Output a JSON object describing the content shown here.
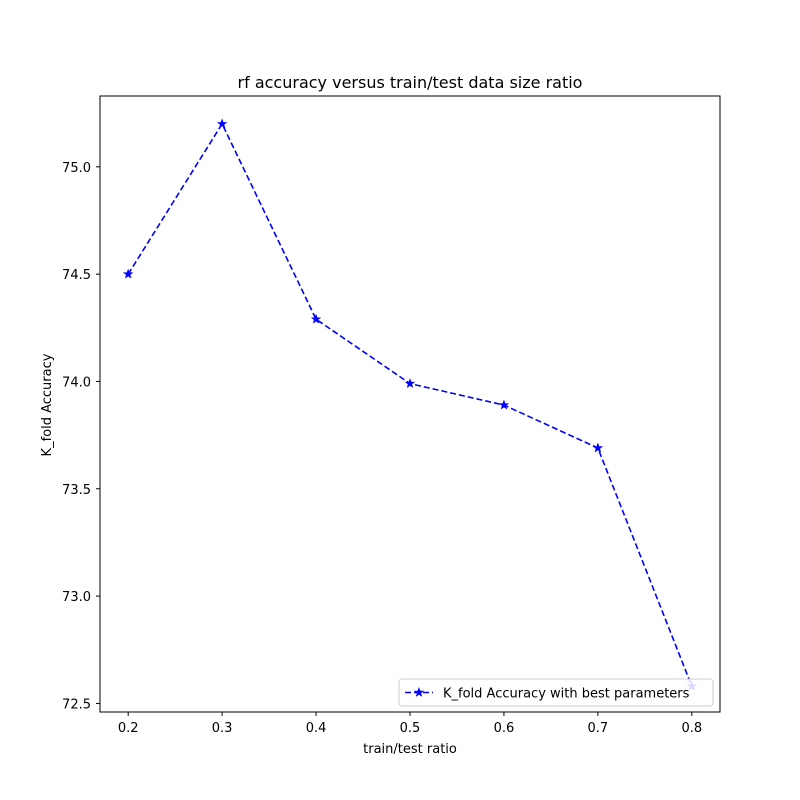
{
  "chart_data": {
    "type": "line",
    "title": "rf accuracy versus train/test data size ratio",
    "xlabel": "train/test ratio",
    "ylabel": "K_fold Accuracy",
    "x": [
      0.2,
      0.3,
      0.4,
      0.5,
      0.6,
      0.7,
      0.8
    ],
    "x_ticks": [
      "0.2",
      "0.3",
      "0.4",
      "0.5",
      "0.6",
      "0.7",
      "0.8"
    ],
    "y_ticks": [
      "72.5",
      "73.0",
      "73.5",
      "74.0",
      "74.5",
      "75.0"
    ],
    "y_tick_values": [
      72.5,
      73.0,
      73.5,
      74.0,
      74.5,
      75.0
    ],
    "xlim": [
      0.17,
      0.83
    ],
    "ylim": [
      72.46,
      75.33
    ],
    "grid": false,
    "legend_position": "lower-right",
    "series": [
      {
        "name": "K_fold Accuracy with best parameters",
        "values": [
          74.5,
          75.2,
          74.29,
          73.99,
          73.89,
          73.69,
          72.58
        ],
        "color": "#0000ff",
        "line_style": "dashed",
        "marker": "star"
      }
    ]
  }
}
